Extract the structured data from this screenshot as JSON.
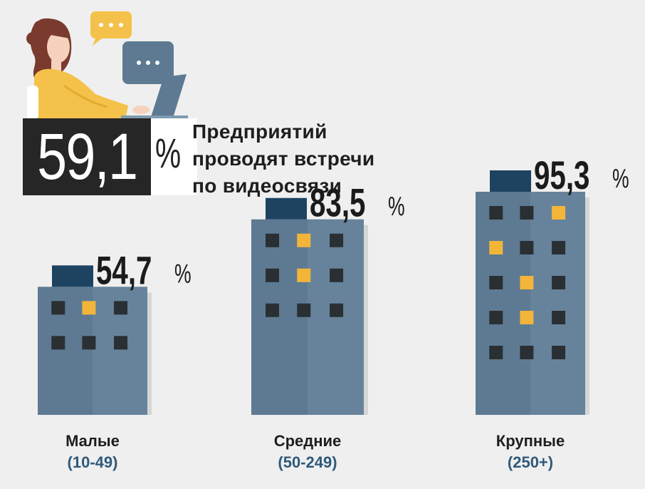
{
  "headline": {
    "value": "59,1",
    "unit": "%",
    "caption_lines": [
      "Предприятий",
      "проводят встречи",
      "по видеосвязи"
    ]
  },
  "chart_data": {
    "type": "bar",
    "categories": [
      "Малые",
      "Средние",
      "Крупные"
    ],
    "category_ranges": [
      "(10-49)",
      "(50-249)",
      "(250+)"
    ],
    "values": [
      54.7,
      83.5,
      95.3
    ],
    "value_labels": [
      "54,7",
      "83,5",
      "95,3"
    ],
    "unit": "%",
    "title": "",
    "xlabel": "",
    "ylabel": "",
    "ylim": [
      0,
      100
    ],
    "grid": false,
    "colors": {
      "building": "#5d7a92",
      "building_light": "#6e8ba3",
      "roof": "#1d4361",
      "window_dark": "#2a2f33",
      "window_lit": "#f2b53a"
    },
    "windows": [
      {
        "rows": [
          [
            "d",
            "y",
            "d"
          ],
          [
            "d",
            "d",
            "d"
          ]
        ]
      },
      {
        "rows": [
          [
            "d",
            "y",
            "d"
          ],
          [
            "d",
            "y",
            "d"
          ],
          [
            "d",
            "d",
            "d"
          ]
        ]
      },
      {
        "rows": [
          [
            "d",
            "d",
            "y"
          ],
          [
            "y",
            "d",
            "d"
          ],
          [
            "d",
            "y",
            "d"
          ],
          [
            "d",
            "y",
            "d"
          ],
          [
            "d",
            "d",
            "d"
          ]
        ]
      }
    ]
  },
  "illustration": {
    "name": "woman-at-laptop-with-chat-bubbles"
  }
}
